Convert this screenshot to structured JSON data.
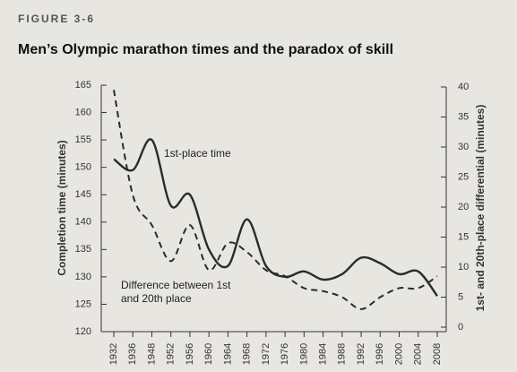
{
  "figure_label": "FIGURE 3-6",
  "chart_data": {
    "type": "line",
    "title": "Men’s Olympic marathon times and the paradox of skill",
    "y_label": "Completion time (minutes)",
    "y2_label": "1st- and 20th-place differential (minutes)",
    "categories": [
      "1932",
      "1936",
      "1948",
      "1952",
      "1956",
      "1960",
      "1964",
      "1968",
      "1972",
      "1976",
      "1980",
      "1984",
      "1988",
      "1992",
      "1996",
      "2000",
      "2004",
      "2008"
    ],
    "series": [
      {
        "name": "1st-place time",
        "color": "#2b2b2b",
        "dash": false,
        "values": [
          151.5,
          149.5,
          155,
          143,
          145,
          135,
          132,
          140.5,
          132,
          130,
          131,
          129.5,
          130.5,
          133.5,
          132.5,
          130.5,
          131,
          126.5
        ]
      },
      {
        "name": "Difference between 1st and 20th place",
        "color": "#2b2b2b",
        "dash": true,
        "axis": "y2",
        "values": [
          39.5,
          22,
          17,
          11,
          17,
          9.5,
          14,
          12.5,
          9.5,
          8.5,
          6.5,
          6,
          5,
          3,
          5,
          6.5,
          6.5,
          8.5
        ]
      }
    ],
    "ylim": [
      120,
      165
    ],
    "yticks": [
      120,
      125,
      130,
      135,
      140,
      145,
      150,
      155,
      160,
      165
    ],
    "y2lim": [
      0,
      40
    ],
    "y2ticks": [
      0,
      5,
      10,
      15,
      20,
      25,
      30,
      35,
      40
    ]
  }
}
